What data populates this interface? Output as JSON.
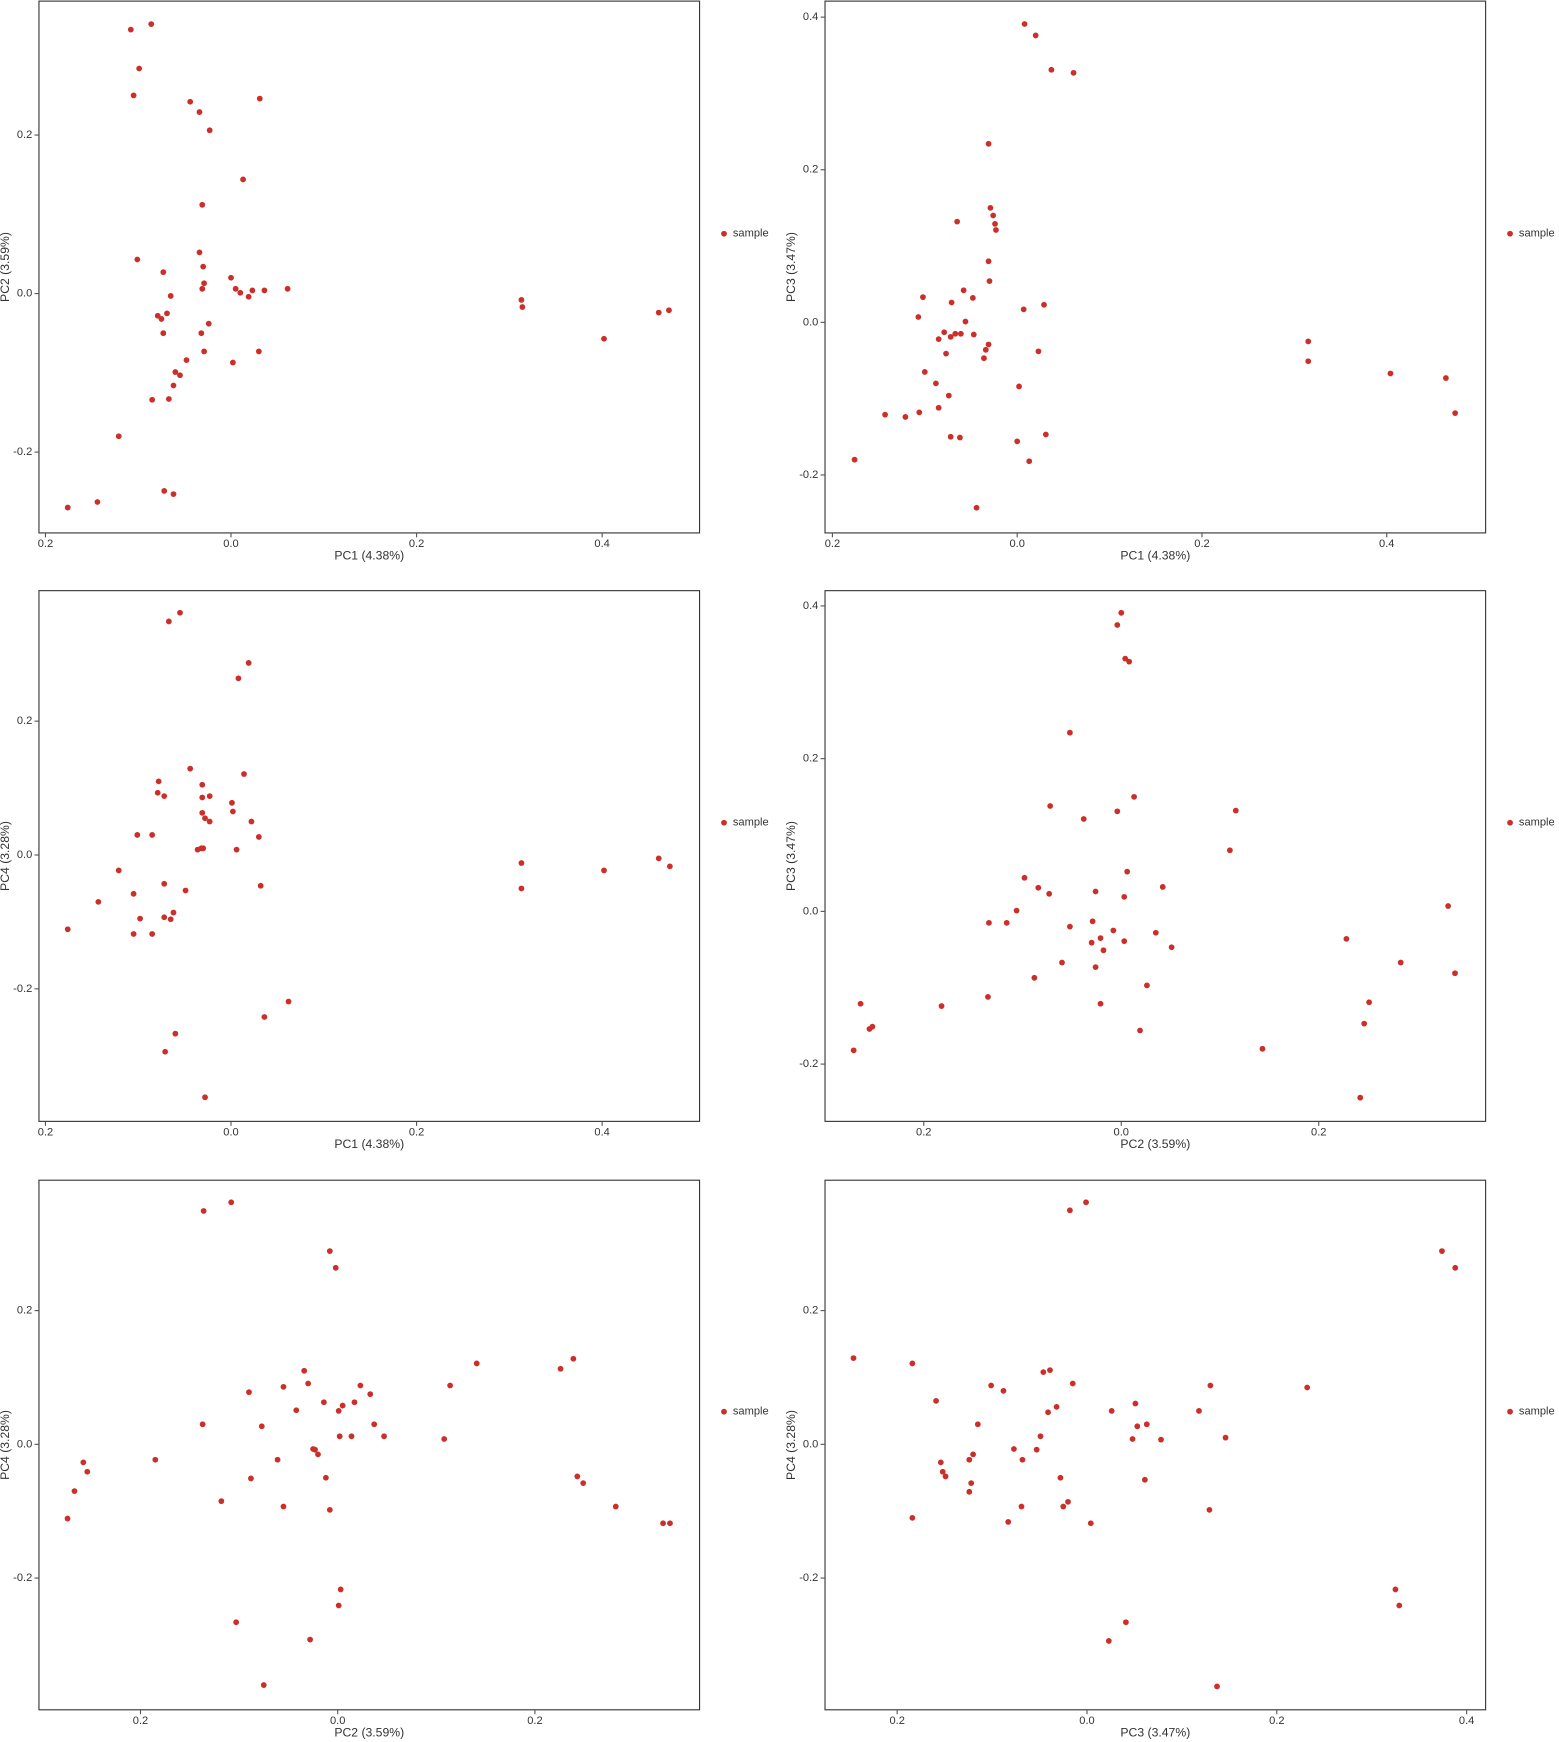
{
  "chart_data": [
    {
      "type": "scatter",
      "x_label": "PC1 (4.38%)",
      "y_label": "PC2 (3.59%)",
      "xlim": [
        -0.207,
        0.505
      ],
      "ylim": [
        -0.302,
        0.369
      ],
      "xticks": [
        {
          "value": -0.2,
          "label": "0.2"
        },
        {
          "value": 0,
          "label": "0.0"
        },
        0.2,
        0.4
      ],
      "yticks": [
        0.2,
        {
          "value": 0,
          "label": "0.0"
        },
        -0.2
      ],
      "x": [
        -0.108,
        -0.086,
        -0.099,
        -0.105,
        -0.044,
        -0.034,
        0.031,
        0.013,
        -0.023,
        -0.031,
        -0.101,
        -0.034,
        -0.073,
        -0.03,
        -0.029,
        -0.031,
        0.0,
        0.005,
        0.01,
        0.019,
        0.023,
        0.036,
        0.061,
        -0.065,
        -0.079,
        -0.075,
        -0.069,
        -0.024,
        -0.073,
        -0.032,
        -0.029,
        0.03,
        0.002,
        -0.048,
        -0.06,
        -0.055,
        -0.062,
        -0.067,
        -0.085,
        -0.121,
        -0.072,
        -0.062,
        -0.144,
        -0.176,
        0.313,
        0.314,
        0.402,
        0.461,
        0.472
      ],
      "series": [
        {
          "name": "sample",
          "color": "#cc2f2a",
          "values": [
            0.333,
            0.34,
            0.284,
            0.25,
            0.242,
            0.229,
            0.246,
            0.144,
            0.206,
            0.112,
            0.043,
            0.052,
            0.027,
            0.034,
            0.013,
            0.006,
            0.02,
            0.006,
            0.001,
            -0.004,
            0.004,
            0.004,
            0.006,
            -0.003,
            -0.028,
            -0.032,
            -0.025,
            -0.038,
            -0.05,
            -0.05,
            -0.073,
            -0.073,
            -0.087,
            -0.084,
            -0.099,
            -0.103,
            -0.116,
            -0.133,
            -0.134,
            -0.18,
            -0.249,
            -0.253,
            -0.263,
            -0.27,
            -0.008,
            -0.017,
            -0.057,
            -0.024,
            -0.021
          ]
        }
      ]
    },
    {
      "type": "scatter",
      "x_label": "PC1 (4.38%)",
      "y_label": "PC3 (3.47%)",
      "xlim": [
        -0.208,
        0.507
      ],
      "ylim": [
        -0.276,
        0.421
      ],
      "xticks": [
        {
          "value": -0.2,
          "label": "0.2"
        },
        {
          "value": 0,
          "label": "0.0"
        },
        0.2,
        0.4
      ],
      "yticks": [
        0.4,
        0.2,
        {
          "value": 0,
          "label": "0.0"
        },
        -0.2
      ],
      "x": [
        0.008,
        0.02,
        0.037,
        0.061,
        -0.031,
        -0.065,
        -0.029,
        -0.026,
        -0.024,
        -0.023,
        -0.031,
        -0.03,
        -0.102,
        -0.058,
        -0.071,
        -0.048,
        0.007,
        0.029,
        -0.107,
        -0.056,
        -0.079,
        -0.072,
        -0.067,
        -0.061,
        -0.085,
        -0.047,
        -0.077,
        -0.031,
        -0.034,
        -0.036,
        0.023,
        -0.1,
        -0.088,
        0.002,
        -0.074,
        -0.085,
        -0.143,
        -0.121,
        -0.106,
        -0.072,
        -0.062,
        0.031,
        0.0,
        0.013,
        -0.176,
        -0.044,
        0.315,
        0.315,
        0.404,
        0.464,
        0.474
      ],
      "series": [
        {
          "name": "sample",
          "color": "#cc2f2a",
          "values": [
            0.391,
            0.376,
            0.331,
            0.327,
            0.234,
            0.132,
            0.15,
            0.14,
            0.129,
            0.121,
            0.08,
            0.054,
            0.033,
            0.042,
            0.026,
            0.032,
            0.017,
            0.023,
            0.007,
            0.001,
            -0.013,
            -0.019,
            -0.015,
            -0.015,
            -0.022,
            -0.016,
            -0.041,
            -0.029,
            -0.036,
            -0.047,
            -0.038,
            -0.065,
            -0.08,
            -0.084,
            -0.096,
            -0.112,
            -0.121,
            -0.124,
            -0.118,
            -0.15,
            -0.151,
            -0.147,
            -0.156,
            -0.182,
            -0.18,
            -0.243,
            -0.025,
            -0.051,
            -0.067,
            -0.073,
            -0.119
          ]
        }
      ]
    },
    {
      "type": "scatter",
      "x_label": "PC1 (4.38%)",
      "y_label": "PC4 (3.28%)",
      "xlim": [
        -0.207,
        0.505
      ],
      "ylim": [
        -0.398,
        0.395
      ],
      "xticks": [
        {
          "value": -0.2,
          "label": "0.2"
        },
        {
          "value": 0,
          "label": "0.0"
        },
        0.2,
        0.4
      ],
      "yticks": [
        0.2,
        {
          "value": 0,
          "label": "0.0"
        },
        -0.2
      ],
      "x": [
        -0.055,
        -0.067,
        0.019,
        0.008,
        -0.044,
        0.014,
        -0.078,
        -0.079,
        -0.072,
        -0.031,
        -0.023,
        -0.031,
        0.001,
        -0.031,
        0.002,
        -0.028,
        -0.023,
        0.022,
        -0.101,
        -0.085,
        0.03,
        -0.032,
        -0.03,
        -0.036,
        0.006,
        -0.121,
        -0.072,
        -0.143,
        0.032,
        -0.049,
        -0.105,
        -0.062,
        -0.098,
        -0.072,
        -0.065,
        -0.176,
        -0.105,
        -0.085,
        0.062,
        0.036,
        -0.06,
        -0.071,
        -0.028,
        0.313,
        0.313,
        0.402,
        0.461,
        0.473
      ],
      "series": [
        {
          "name": "sample",
          "color": "#cc2f2a",
          "values": [
            0.362,
            0.349,
            0.287,
            0.264,
            0.129,
            0.121,
            0.11,
            0.093,
            0.088,
            0.105,
            0.088,
            0.086,
            0.078,
            0.063,
            0.065,
            0.055,
            0.05,
            0.05,
            0.03,
            0.03,
            0.027,
            0.01,
            0.01,
            0.008,
            0.008,
            -0.023,
            -0.043,
            -0.07,
            -0.046,
            -0.053,
            -0.058,
            -0.086,
            -0.095,
            -0.093,
            -0.096,
            -0.111,
            -0.118,
            -0.118,
            -0.219,
            -0.242,
            -0.267,
            -0.294,
            -0.362,
            -0.012,
            -0.05,
            -0.023,
            -0.005,
            -0.017
          ]
        }
      ]
    },
    {
      "type": "scatter",
      "x_label": "PC2 (3.59%)",
      "y_label": "PC3 (3.47%)",
      "xlim": [
        -0.3,
        0.369
      ],
      "ylim": [
        -0.275,
        0.42
      ],
      "xticks": [
        {
          "value": -0.2,
          "label": "0.2"
        },
        {
          "value": 0,
          "label": "0.0"
        },
        0.2
      ],
      "yticks": [
        0.4,
        0.2,
        {
          "value": 0,
          "label": "0.0"
        },
        -0.2
      ],
      "x": [
        0.0,
        -0.004,
        0.004,
        0.008,
        -0.052,
        -0.072,
        0.013,
        0.116,
        -0.038,
        -0.004,
        0.11,
        0.006,
        -0.098,
        -0.084,
        -0.073,
        -0.026,
        0.042,
        0.003,
        0.331,
        -0.106,
        -0.134,
        -0.116,
        -0.029,
        -0.052,
        -0.008,
        0.035,
        -0.021,
        -0.03,
        0.003,
        0.228,
        -0.018,
        0.051,
        -0.06,
        -0.026,
        0.283,
        -0.088,
        0.338,
        0.026,
        -0.135,
        -0.021,
        -0.182,
        -0.264,
        0.251,
        -0.252,
        -0.255,
        0.019,
        0.246,
        -0.271,
        0.143,
        0.242
      ],
      "series": [
        {
          "name": "sample",
          "color": "#cc2f2a",
          "values": [
            0.391,
            0.375,
            0.331,
            0.327,
            0.234,
            0.138,
            0.15,
            0.132,
            0.121,
            0.131,
            0.08,
            0.052,
            0.044,
            0.031,
            0.023,
            0.026,
            0.032,
            0.019,
            0.007,
            0.001,
            -0.015,
            -0.015,
            -0.013,
            -0.02,
            -0.025,
            -0.028,
            -0.035,
            -0.041,
            -0.039,
            -0.036,
            -0.051,
            -0.047,
            -0.067,
            -0.073,
            -0.067,
            -0.087,
            -0.081,
            -0.097,
            -0.112,
            -0.121,
            -0.124,
            -0.121,
            -0.119,
            -0.151,
            -0.154,
            -0.156,
            -0.147,
            -0.182,
            -0.18,
            -0.244
          ]
        }
      ]
    },
    {
      "type": "scatter",
      "x_label": "PC2 (3.59%)",
      "y_label": "PC4 (3.28%)",
      "xlim": [
        -0.303,
        0.367
      ],
      "ylim": [
        -0.397,
        0.395
      ],
      "xticks": [
        {
          "value": -0.2,
          "label": "0.2"
        },
        {
          "value": 0,
          "label": "0.0"
        },
        0.2
      ],
      "yticks": [
        0.2,
        {
          "value": 0,
          "label": "0.0"
        },
        -0.2
      ],
      "x": [
        -0.108,
        -0.136,
        -0.008,
        -0.002,
        0.141,
        0.239,
        0.226,
        -0.034,
        0.114,
        -0.03,
        -0.055,
        0.023,
        -0.09,
        0.033,
        0.017,
        0.005,
        -0.014,
        -0.042,
        0.001,
        0.037,
        -0.137,
        -0.077,
        0.002,
        0.014,
        0.047,
        0.108,
        -0.025,
        -0.02,
        -0.023,
        -0.185,
        -0.061,
        -0.258,
        -0.254,
        -0.012,
        -0.088,
        0.243,
        0.249,
        -0.267,
        -0.118,
        -0.055,
        0.282,
        -0.008,
        -0.274,
        0.33,
        0.337,
        0.003,
        0.001,
        -0.103,
        -0.028,
        -0.075
      ],
      "series": [
        {
          "name": "sample",
          "color": "#cc2f2a",
          "values": [
            0.362,
            0.349,
            0.289,
            0.264,
            0.121,
            0.128,
            0.113,
            0.11,
            0.088,
            0.091,
            0.086,
            0.088,
            0.078,
            0.075,
            0.063,
            0.058,
            0.063,
            0.051,
            0.05,
            0.03,
            0.03,
            0.027,
            0.012,
            0.012,
            0.012,
            0.008,
            -0.007,
            -0.015,
            -0.008,
            -0.023,
            -0.023,
            -0.027,
            -0.041,
            -0.05,
            -0.051,
            -0.048,
            -0.058,
            -0.07,
            -0.085,
            -0.093,
            -0.093,
            -0.098,
            -0.111,
            -0.118,
            -0.118,
            -0.217,
            -0.241,
            -0.266,
            -0.292,
            -0.36
          ]
        }
      ]
    },
    {
      "type": "scatter",
      "x_label": "PC3 (3.47%)",
      "y_label": "PC4 (3.28%)",
      "xlim": [
        -0.276,
        0.42
      ],
      "ylim": [
        -0.397,
        0.395
      ],
      "xticks": [
        {
          "value": -0.2,
          "label": "0.2"
        },
        {
          "value": 0,
          "label": "0.0"
        },
        0.2,
        0.4
      ],
      "yticks": [
        0.2,
        {
          "value": 0,
          "label": "0.0"
        },
        -0.2
      ],
      "x": [
        -0.001,
        -0.018,
        0.374,
        0.388,
        -0.246,
        -0.184,
        -0.039,
        -0.046,
        -0.101,
        -0.015,
        0.13,
        0.232,
        -0.088,
        -0.159,
        0.051,
        -0.032,
        0.118,
        -0.041,
        0.026,
        -0.115,
        0.063,
        0.053,
        -0.049,
        0.048,
        0.078,
        0.146,
        -0.077,
        -0.12,
        -0.053,
        -0.154,
        -0.068,
        -0.124,
        -0.152,
        -0.149,
        -0.028,
        0.061,
        -0.122,
        -0.124,
        -0.02,
        -0.025,
        -0.069,
        0.129,
        -0.184,
        -0.083,
        0.004,
        0.325,
        0.329,
        0.041,
        0.023,
        0.137
      ],
      "series": [
        {
          "name": "sample",
          "color": "#cc2f2a",
          "values": [
            0.362,
            0.35,
            0.289,
            0.264,
            0.129,
            0.121,
            0.111,
            0.108,
            0.088,
            0.091,
            0.088,
            0.085,
            0.08,
            0.065,
            0.061,
            0.056,
            0.05,
            0.048,
            0.05,
            0.03,
            0.03,
            0.027,
            0.012,
            0.008,
            0.007,
            0.01,
            -0.007,
            -0.015,
            -0.008,
            -0.027,
            -0.023,
            -0.023,
            -0.041,
            -0.048,
            -0.05,
            -0.053,
            -0.058,
            -0.071,
            -0.086,
            -0.093,
            -0.093,
            -0.098,
            -0.11,
            -0.116,
            -0.118,
            -0.217,
            -0.241,
            -0.266,
            -0.294,
            -0.362
          ]
        }
      ]
    }
  ]
}
